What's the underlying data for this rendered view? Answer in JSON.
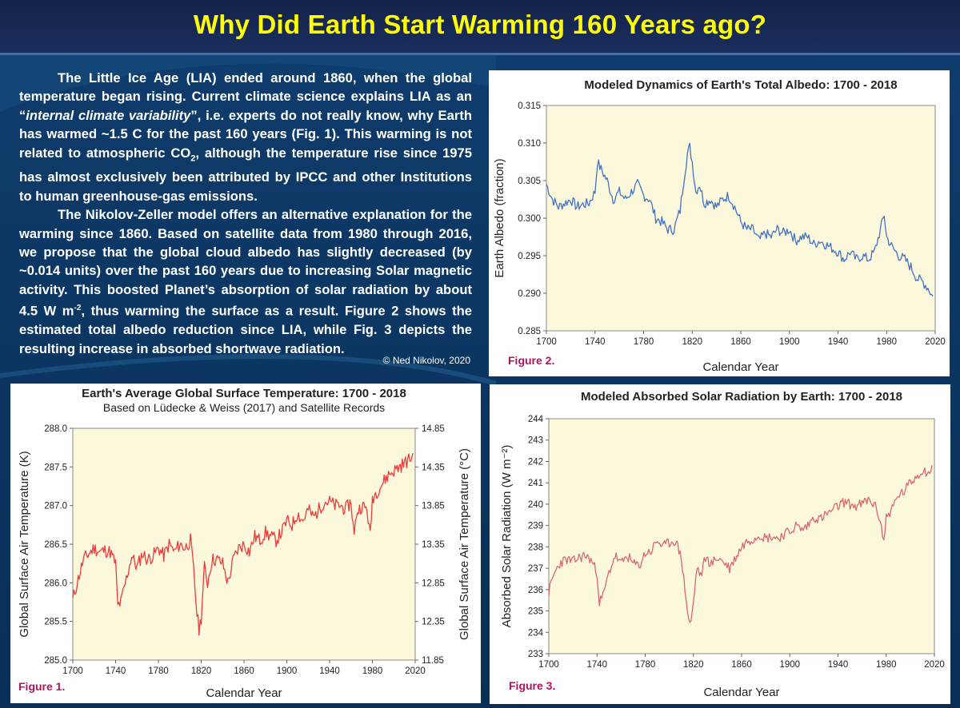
{
  "page": {
    "title": "Why Did Earth Start Warming 160 Years ago?",
    "paragraphs": [
      [
        "The Little Ice Age (LIA) ended around 1860, when the global temperature began rising. Current climate science explains LIA as an “",
        {
          "i": "internal climate variability"
        },
        "”, i.e. experts do not really know, why Earth has warmed ~1.5 C for the past 160 years (Fig. 1). This warming is not related to atmospheric CO",
        {
          "sub": "2"
        },
        ", although the temperature rise since 1975 has almost exclusively been attributed by IPCC and other Institutions to human greenhouse-gas emissions."
      ],
      [
        "The Nikolov-Zeller model offers an alternative explanation for the warming since 1860. Based on satellite data from 1980 through 2016, we propose that the global cloud albedo has slightly decreased (by ~0.014 units) over the past 160 years due to increasing Solar magnetic activity. This boosted Planet’s absorption of solar radiation  by about 4.5 W m",
        {
          "sup": "-2"
        },
        ", thus warming the surface as a result. Figure 2 shows the estimated total albedo reduction since LIA, while Fig. 3 depicts the resulting increase in absorbed shortwave radiation."
      ]
    ],
    "copyright": "© Ned Nikolov, 2020"
  },
  "colors": {
    "title": "#ffff00",
    "background": "#0e3a66",
    "plot_area": "#fbf8dc",
    "figure_label": "#b0135c",
    "albedo_line": "#4472c4",
    "temperature_line": "#ee3b3b",
    "radiation_line": "#d96a6a"
  },
  "chart_data": [
    {
      "id": "fig1",
      "type": "line",
      "title": "Earth's Average Global Surface Temperature: 1700 - 2018",
      "subtitle": "Based on  Lüdecke & Weiss (2017) and Satellite Records",
      "xlabel": "Calendar Year",
      "ylabel": "Global Surface Air Temperature (K)",
      "y2label": "Global Surface Air Temperature (°C)",
      "figure_label": "Figure 1.",
      "xlim": [
        1700,
        2020
      ],
      "ylim": [
        285.0,
        288.0
      ],
      "y2lim": [
        11.85,
        14.85
      ],
      "xticks": [
        "1700",
        "1740",
        "1780",
        "1820",
        "1860",
        "1900",
        "1940",
        "1980",
        "2020"
      ],
      "yticks": [
        "285.0",
        "285.5",
        "286.0",
        "286.5",
        "287.0",
        "287.5",
        "288.0"
      ],
      "y2ticks": [
        "11.85",
        "12.35",
        "12.85",
        "13.35",
        "13.85",
        "14.35",
        "14.85"
      ],
      "grid": false,
      "series": [
        {
          "color": "#ee3b3b",
          "x": [
            1700,
            1705,
            1710,
            1715,
            1720,
            1725,
            1730,
            1735,
            1740,
            1742,
            1745,
            1750,
            1755,
            1760,
            1765,
            1770,
            1775,
            1780,
            1785,
            1790,
            1795,
            1800,
            1805,
            1810,
            1813,
            1816,
            1818,
            1820,
            1823,
            1826,
            1830,
            1835,
            1840,
            1845,
            1850,
            1855,
            1860,
            1865,
            1870,
            1875,
            1880,
            1885,
            1890,
            1895,
            1900,
            1905,
            1910,
            1915,
            1920,
            1925,
            1930,
            1935,
            1940,
            1945,
            1950,
            1955,
            1960,
            1963,
            1965,
            1970,
            1975,
            1978,
            1980,
            1985,
            1990,
            1995,
            2000,
            2005,
            2010,
            2015,
            2018
          ],
          "y": [
            285.78,
            286.05,
            286.3,
            286.38,
            286.45,
            286.4,
            286.42,
            286.4,
            286.25,
            285.7,
            285.75,
            286.05,
            286.35,
            286.2,
            286.38,
            286.3,
            286.35,
            286.45,
            286.35,
            286.5,
            286.4,
            286.5,
            286.45,
            286.55,
            286.15,
            285.6,
            285.4,
            285.55,
            286.2,
            286.0,
            286.3,
            286.3,
            286.25,
            286.0,
            286.3,
            286.45,
            286.5,
            286.4,
            286.6,
            286.55,
            286.65,
            286.6,
            286.55,
            286.65,
            286.8,
            286.75,
            286.9,
            286.8,
            286.95,
            286.85,
            286.95,
            287.05,
            287.05,
            287.0,
            287.0,
            286.95,
            287.05,
            286.6,
            286.9,
            287.0,
            286.95,
            286.6,
            287.1,
            287.2,
            287.3,
            287.4,
            287.45,
            287.5,
            287.55,
            287.6,
            287.65
          ]
        }
      ]
    },
    {
      "id": "fig2",
      "type": "line",
      "title": "Modeled Dynamics of Earth's Total Albedo: 1700 - 2018",
      "xlabel": "Calendar Year",
      "ylabel": "Earth Albedo (fraction)",
      "figure_label": "Figure 2.",
      "xlim": [
        1700,
        2020
      ],
      "ylim": [
        0.285,
        0.315
      ],
      "xticks": [
        "1700",
        "1740",
        "1780",
        "1820",
        "1860",
        "1900",
        "1940",
        "1980",
        "2020"
      ],
      "yticks": [
        "0.285",
        "0.290",
        "0.295",
        "0.300",
        "0.305",
        "0.310",
        "0.315"
      ],
      "grid": false,
      "series": [
        {
          "color": "#4472c4",
          "x": [
            1700,
            1705,
            1710,
            1715,
            1720,
            1725,
            1730,
            1735,
            1740,
            1742,
            1745,
            1750,
            1755,
            1760,
            1765,
            1770,
            1775,
            1780,
            1785,
            1790,
            1795,
            1800,
            1805,
            1810,
            1813,
            1816,
            1818,
            1820,
            1823,
            1826,
            1830,
            1835,
            1840,
            1845,
            1850,
            1855,
            1860,
            1865,
            1870,
            1875,
            1880,
            1885,
            1890,
            1895,
            1900,
            1905,
            1910,
            1915,
            1920,
            1925,
            1930,
            1935,
            1940,
            1945,
            1950,
            1955,
            1960,
            1965,
            1970,
            1975,
            1978,
            1980,
            1985,
            1990,
            1995,
            2000,
            2005,
            2010,
            2015,
            2018
          ],
          "y": [
            0.3045,
            0.3025,
            0.3015,
            0.302,
            0.3025,
            0.3015,
            0.3018,
            0.302,
            0.3035,
            0.3075,
            0.3065,
            0.305,
            0.3025,
            0.3035,
            0.3025,
            0.3035,
            0.3045,
            0.303,
            0.3025,
            0.3,
            0.2995,
            0.2985,
            0.2985,
            0.301,
            0.305,
            0.3085,
            0.3095,
            0.3075,
            0.3035,
            0.3045,
            0.302,
            0.3025,
            0.3015,
            0.3025,
            0.303,
            0.3015,
            0.2995,
            0.2985,
            0.2985,
            0.297,
            0.298,
            0.2975,
            0.2985,
            0.298,
            0.2985,
            0.297,
            0.2975,
            0.2975,
            0.2965,
            0.297,
            0.2965,
            0.296,
            0.2955,
            0.2945,
            0.2955,
            0.2945,
            0.295,
            0.2945,
            0.2955,
            0.2985,
            0.3005,
            0.2975,
            0.296,
            0.295,
            0.2945,
            0.2935,
            0.292,
            0.2915,
            0.2905,
            0.2895
          ]
        }
      ]
    },
    {
      "id": "fig3",
      "type": "line",
      "title": "Modeled Absorbed Solar Radiation by Earth: 1700 - 2018",
      "xlabel": "Calendar Year",
      "ylabel": "Absorbed Solar Radiation (W m⁻²)",
      "figure_label": "Figure 3.",
      "xlim": [
        1700,
        2020
      ],
      "ylim": [
        233,
        244
      ],
      "xticks": [
        "1700",
        "1740",
        "1780",
        "1820",
        "1860",
        "1900",
        "1940",
        "1980",
        "2020"
      ],
      "yticks": [
        "233",
        "234",
        "235",
        "236",
        "237",
        "238",
        "239",
        "240",
        "241",
        "242",
        "243",
        "244"
      ],
      "grid": false,
      "series": [
        {
          "color": "#d96a6a",
          "x": [
            1700,
            1705,
            1710,
            1715,
            1720,
            1725,
            1730,
            1735,
            1740,
            1742,
            1745,
            1750,
            1755,
            1760,
            1765,
            1770,
            1775,
            1780,
            1785,
            1790,
            1795,
            1800,
            1805,
            1810,
            1813,
            1816,
            1818,
            1820,
            1823,
            1826,
            1830,
            1835,
            1840,
            1845,
            1850,
            1855,
            1860,
            1865,
            1870,
            1875,
            1880,
            1885,
            1890,
            1895,
            1900,
            1905,
            1910,
            1915,
            1920,
            1925,
            1930,
            1935,
            1940,
            1945,
            1950,
            1955,
            1960,
            1965,
            1970,
            1975,
            1978,
            1980,
            1985,
            1990,
            1995,
            2000,
            2005,
            2010,
            2015,
            2018
          ],
          "y": [
            235.9,
            236.8,
            237.3,
            237.4,
            237.3,
            237.5,
            237.6,
            237.4,
            236.8,
            235.4,
            235.7,
            236.8,
            237.6,
            237.2,
            237.6,
            237.2,
            237.1,
            237.7,
            237.8,
            238.3,
            238.0,
            238.2,
            238.3,
            237.5,
            236.0,
            234.6,
            234.4,
            235.4,
            237.1,
            236.6,
            237.5,
            237.2,
            237.5,
            237.3,
            237.0,
            237.5,
            238.0,
            238.3,
            238.4,
            238.6,
            238.4,
            238.5,
            238.4,
            238.6,
            238.7,
            239.0,
            238.8,
            239.0,
            239.4,
            239.3,
            239.5,
            239.7,
            239.9,
            240.1,
            240.0,
            239.9,
            240.0,
            240.2,
            240.0,
            239.3,
            238.2,
            239.4,
            239.8,
            240.4,
            240.6,
            241.0,
            241.3,
            241.6,
            241.5,
            241.6
          ]
        }
      ]
    }
  ]
}
